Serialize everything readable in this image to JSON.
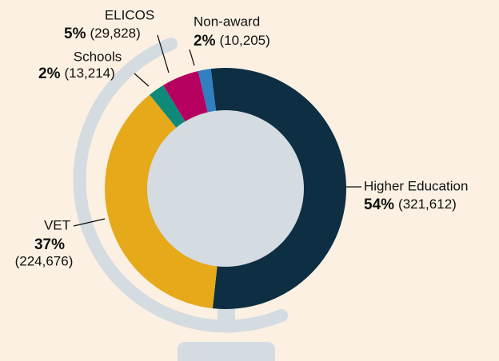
{
  "chart_data": {
    "type": "donut",
    "categories": [
      "Higher Education",
      "VET",
      "Schools",
      "ELICOS",
      "Non-award"
    ],
    "values": [
      321612,
      224676,
      13214,
      29828,
      10205
    ],
    "value_labels": [
      "(321,612)",
      "(224,676)",
      "(13,214)",
      "(29,828)",
      "(10,205)"
    ],
    "shares": [
      54,
      37,
      2,
      5,
      2
    ],
    "share_labels": [
      "54%",
      "37%",
      "2%",
      "5%",
      "2%"
    ],
    "colors": [
      "#0d2e43",
      "#e6a91a",
      "#0f8a7a",
      "#b5005f",
      "#2f7fc1"
    ]
  }
}
